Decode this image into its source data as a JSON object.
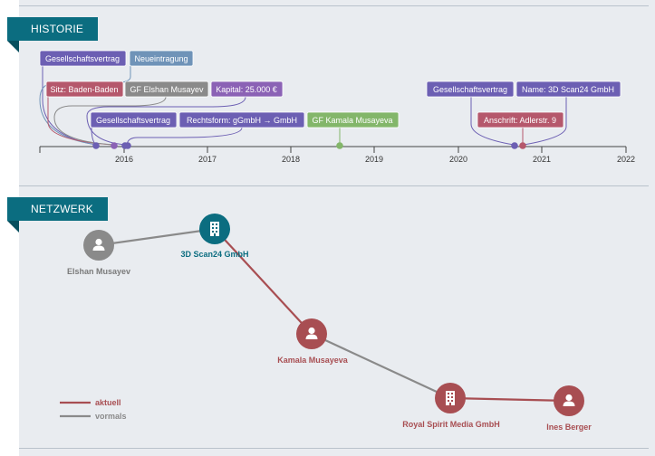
{
  "colors": {
    "accent": "#0b6d80",
    "purple": "#6c5fb3",
    "pink": "#b5586c",
    "gray": "#8a8a8a",
    "steel": "#6f93b8",
    "green": "#83b66a",
    "current": "#a84e52",
    "former": "#8a8a8a"
  },
  "history": {
    "title": "HISTORIE",
    "years": [
      "2016",
      "2017",
      "2018",
      "2019",
      "2020",
      "2021",
      "2022"
    ],
    "tags": {
      "gesellschaftsvertrag_1": "Gesellschaftsvertrag",
      "neueintragung": "Neueintragung",
      "sitz": "Sitz: Baden-Baden",
      "gf_elshan": "GF Elshan Musayev",
      "kapital": "Kapital: 25.000 €",
      "gesellschaftsvertrag_2": "Gesellschaftsvertrag",
      "rechtsform": "Rechtsform: gGmbH → GmbH",
      "gf_kamala": "GF Kamala Musayeva",
      "gesellschaftsvertrag_3": "Gesellschaftsvertrag",
      "name": "Name: 3D Scan24 GmbH",
      "anschrift": "Anschrift: Adlerstr. 9"
    }
  },
  "network": {
    "title": "NETZWERK",
    "nodes": {
      "elshan": {
        "label": "Elshan Musayev",
        "type": "person",
        "status": "former"
      },
      "company3d": {
        "label": "3D Scan24 GmbH",
        "type": "company",
        "status": "focus"
      },
      "kamala": {
        "label": "Kamala Musayeva",
        "type": "person",
        "status": "current"
      },
      "royal": {
        "label": "Royal Spirit Media GmbH",
        "type": "company",
        "status": "current"
      },
      "ines": {
        "label": "Ines Berger",
        "type": "person",
        "status": "current"
      }
    },
    "legend": {
      "current": "aktuell",
      "former": "vormals"
    }
  }
}
